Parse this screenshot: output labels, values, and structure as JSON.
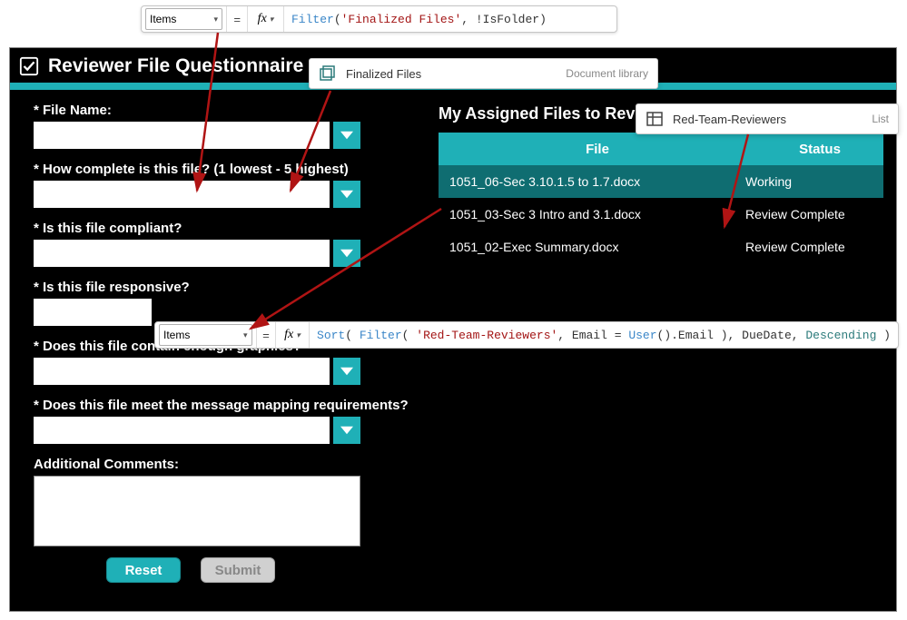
{
  "colors": {
    "teal": "#1fb0b7",
    "tealDark": "#0f6d71",
    "black": "#000000",
    "white": "#ffffff",
    "arrow": "#b01414",
    "disabledBg": "#d0d0d0",
    "disabledText": "#888888"
  },
  "formula_top": {
    "property": "Items",
    "tokens": [
      {
        "t": "Filter",
        "c": "tok-fn"
      },
      {
        "t": "(",
        "c": "tok-plain"
      },
      {
        "t": "'Finalized Files'",
        "c": "tok-str"
      },
      {
        "t": ", !IsFolder)",
        "c": "tok-plain"
      }
    ]
  },
  "formula_mid": {
    "property": "Items",
    "tokens": [
      {
        "t": "Sort",
        "c": "tok-fn"
      },
      {
        "t": "( ",
        "c": "tok-plain"
      },
      {
        "t": "Filter",
        "c": "tok-fn"
      },
      {
        "t": "( ",
        "c": "tok-plain"
      },
      {
        "t": "'Red-Team-Reviewers'",
        "c": "tok-str"
      },
      {
        "t": ", Email = ",
        "c": "tok-plain"
      },
      {
        "t": "User",
        "c": "tok-fn"
      },
      {
        "t": "().Email ), DueDate, ",
        "c": "tok-plain"
      },
      {
        "t": "Descending",
        "c": "tok-enum"
      },
      {
        "t": " )",
        "c": "tok-plain"
      }
    ]
  },
  "ds1": {
    "name": "Finalized Files",
    "type": "Document library"
  },
  "ds2": {
    "name": "Red-Team-Reviewers",
    "type": "List"
  },
  "app": {
    "title": "Reviewer File Questionnaire",
    "reset": "Reset",
    "submit": "Submit"
  },
  "form": {
    "q1": "* File Name:",
    "q2": "* How complete is this file? (1 lowest - 5 highest)",
    "q3": "* Is this file compliant?",
    "q4": "* Is this file responsive?",
    "q5": "* Does this file contain enough graphics?",
    "q6": "* Does this file meet the message mapping requirements?",
    "q7": "Additional Comments:"
  },
  "gallery": {
    "title": "My Assigned Files to Review",
    "col_file": "File",
    "col_status": "Status",
    "rows": [
      {
        "file": "1051_06-Sec 3.10.1.5 to 1.7.docx",
        "status": "Working",
        "selected": true
      },
      {
        "file": "1051_03-Sec 3 Intro and 3.1.docx",
        "status": "Review Complete",
        "selected": false
      },
      {
        "file": "1051_02-Exec Summary.docx",
        "status": "Review Complete",
        "selected": false
      }
    ]
  }
}
